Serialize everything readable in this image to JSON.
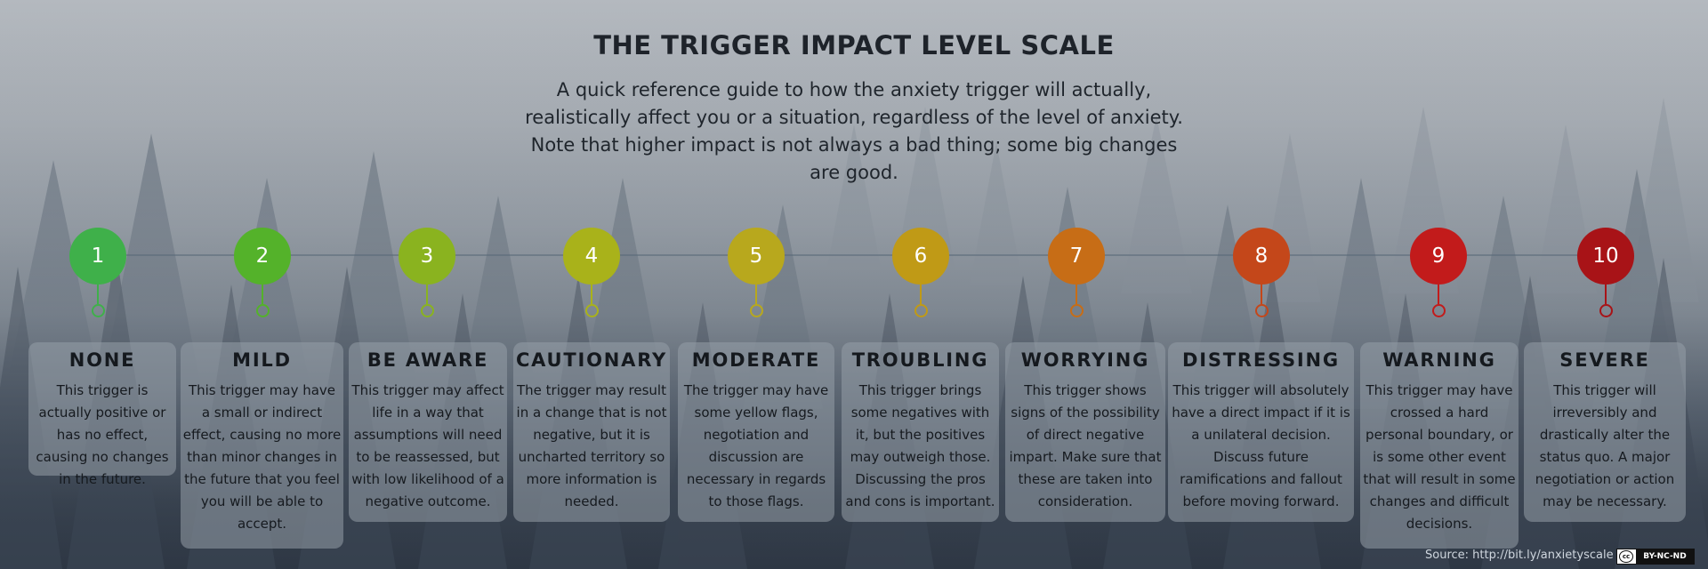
{
  "header": {
    "title": "THE TRIGGER IMPACT LEVEL SCALE",
    "subtitle": "A quick reference guide to how the anxiety trigger will actually, realistically affect you or a situation, regardless of the level of anxiety. Note that higher impact is not always a bad thing; some big changes are good."
  },
  "levels": [
    {
      "number": "1",
      "color": "#3fb04a",
      "name": "NONE",
      "description": "This trigger is actually positive or has no effect, causing no changes in the future."
    },
    {
      "number": "2",
      "color": "#54b22a",
      "name": "MILD",
      "description": "This trigger may have a small or indirect effect, causing no more than minor changes in the future that you feel you will be able to accept."
    },
    {
      "number": "3",
      "color": "#8ab31f",
      "name": "BE AWARE",
      "description": "This trigger may affect life in a way that assumptions will need to be reassessed, but with low likelihood of a negative outcome."
    },
    {
      "number": "4",
      "color": "#a9b21a",
      "name": "CAUTIONARY",
      "description": "The trigger may result in a change that is not negative, but it is uncharted territory so more information is needed."
    },
    {
      "number": "5",
      "color": "#b8a81d",
      "name": "MODERATE",
      "description": "The trigger may have some yellow flags, negotiation and discussion are necessary in regards to those flags."
    },
    {
      "number": "6",
      "color": "#c09a16",
      "name": "TROUBLING",
      "description": "This trigger brings some negatives with it, but the positives may outweigh those. Discussing the pros and cons is important."
    },
    {
      "number": "7",
      "color": "#c76d16",
      "name": "WORRYING",
      "description": "This trigger shows signs of the possibility of direct negative impart. Make sure that these are taken into consideration."
    },
    {
      "number": "8",
      "color": "#c4471a",
      "name": "DISTRESSING",
      "description": "This trigger will absolutely have a direct impact if it is a unilateral decision. Discuss future ramifications and fallout before moving forward."
    },
    {
      "number": "9",
      "color": "#c21b1b",
      "name": "WARNING",
      "description": "This trigger may have crossed a hard personal boundary, or is some other event that will result in some changes and difficult decisions."
    },
    {
      "number": "10",
      "color": "#a81317",
      "name": "SEVERE",
      "description": "This trigger will irreversibly and drastically alter the status quo. A major negotiation or action may be necessary."
    }
  ],
  "footer": {
    "source": "Source: http://bit.ly/anxietyscale",
    "license_symbol": "cc",
    "license": "BY-NC-ND"
  }
}
